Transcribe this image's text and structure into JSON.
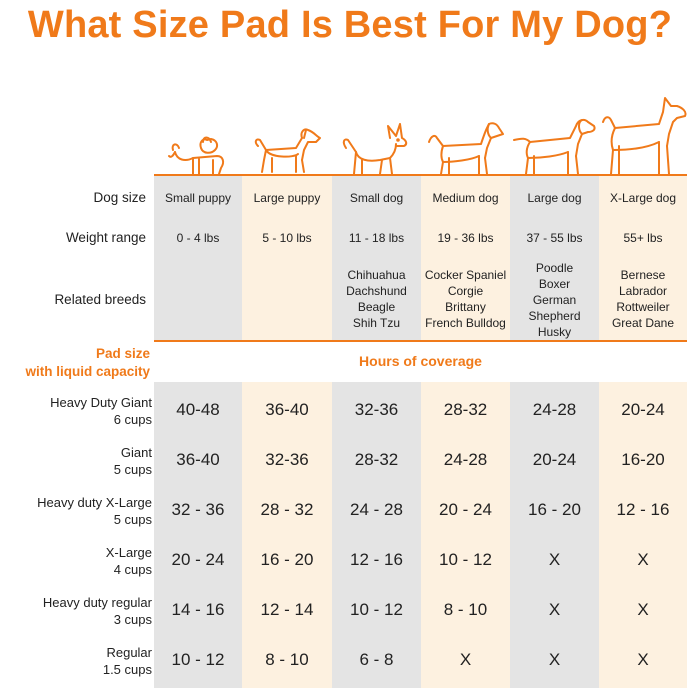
{
  "title": "What Size Pad Is Best For My Dog?",
  "colors": {
    "accent": "#f07a1a",
    "gray_col": "#e4e4e4",
    "cream_col": "#fdf1e0"
  },
  "icons": [
    "small-puppy-icon",
    "large-puppy-icon",
    "small-dog-icon",
    "medium-dog-icon",
    "large-dog-icon",
    "xlarge-dog-icon"
  ],
  "row_labels": {
    "dog_size": "Dog size",
    "weight_range": "Weight range",
    "related_breeds": "Related breeds"
  },
  "columns": [
    {
      "size": "Small puppy",
      "weight": "0 - 4 lbs",
      "breeds": []
    },
    {
      "size": "Large puppy",
      "weight": "5 - 10 lbs",
      "breeds": []
    },
    {
      "size": "Small dog",
      "weight": "11 - 18 lbs",
      "breeds": [
        "Chihuahua",
        "Dachshund",
        "Beagle",
        "Shih Tzu"
      ]
    },
    {
      "size": "Medium dog",
      "weight": "19 - 36 lbs",
      "breeds": [
        "Cocker Spaniel",
        "Corgie",
        "Brittany",
        "French Bulldog"
      ]
    },
    {
      "size": "Large dog",
      "weight": "37 - 55 lbs",
      "breeds": [
        "Poodle",
        "Boxer",
        "German",
        "Shepherd",
        "Husky"
      ]
    },
    {
      "size": "X-Large dog",
      "weight": "55+ lbs",
      "breeds": [
        "Bernese",
        "Labrador",
        "Rottweiler",
        "Great Dane"
      ]
    }
  ],
  "pad_header": {
    "line1": "Pad size",
    "line2": "with liquid capacity"
  },
  "coverage_title": "Hours of coverage",
  "pads": [
    {
      "name": "Heavy Duty Giant",
      "capacity": "6 cups",
      "hours": [
        "40-48",
        "36-40",
        "32-36",
        "28-32",
        "24-28",
        "20-24"
      ]
    },
    {
      "name": "Giant",
      "capacity": "5 cups",
      "hours": [
        "36-40",
        "32-36",
        "28-32",
        "24-28",
        "20-24",
        "16-20"
      ]
    },
    {
      "name": "Heavy duty X-Large",
      "capacity": "5 cups",
      "hours": [
        "32 - 36",
        "28 - 32",
        "24 - 28",
        "20 - 24",
        "16 - 20",
        "12 - 16"
      ]
    },
    {
      "name": "X-Large",
      "capacity": "4 cups",
      "hours": [
        "20 - 24",
        "16 - 20",
        "12 - 16",
        "10 - 12",
        "X",
        "X"
      ]
    },
    {
      "name": "Heavy duty regular",
      "capacity": "3 cups",
      "hours": [
        "14 - 16",
        "12 - 14",
        "10 - 12",
        "8 - 10",
        "X",
        "X"
      ]
    },
    {
      "name": "Regular",
      "capacity": "1.5 cups",
      "hours": [
        "10 - 12",
        "8 - 10",
        "6 - 8",
        "X",
        "X",
        "X"
      ]
    }
  ]
}
